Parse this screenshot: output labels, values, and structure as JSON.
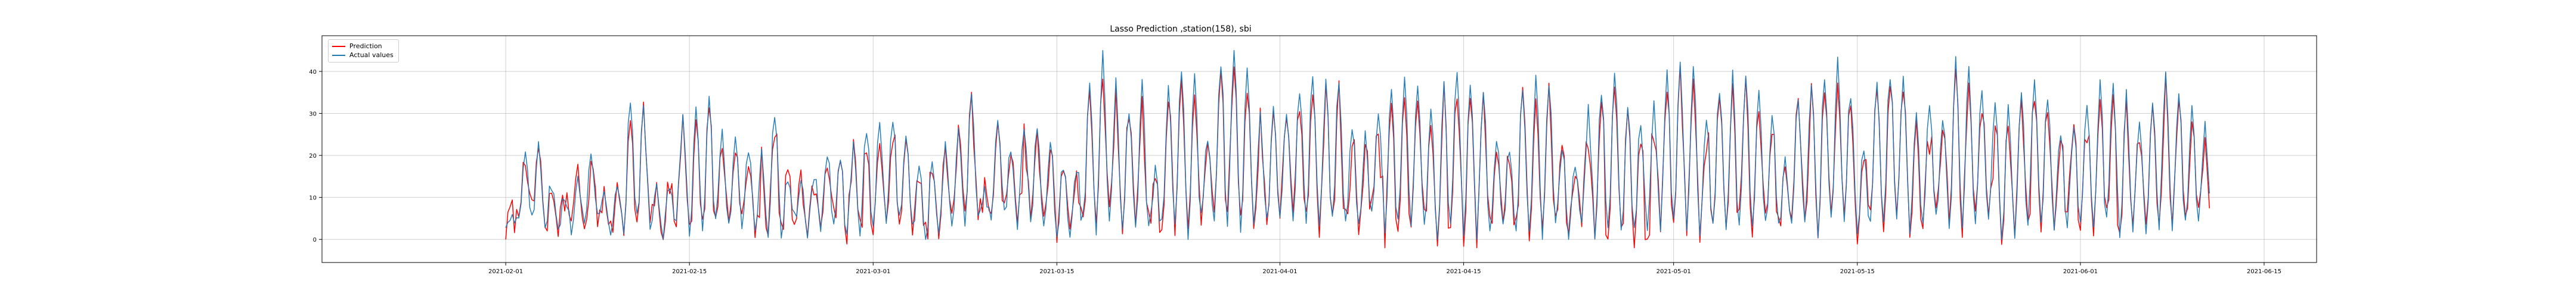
{
  "colors": {
    "prediction": "#ff0000",
    "actual": "#1f77b4",
    "grid": "#b0b0b0",
    "axes": "#000000"
  },
  "chart_data": {
    "type": "line",
    "title": "Lasso Prediction ,station(158), sbi",
    "xlabel": "",
    "ylabel": "",
    "grid": true,
    "legend_position": "top-left",
    "x_range": [
      "2021-01-18",
      "2021-06-19"
    ],
    "y_range": [
      -5.5,
      48.5
    ],
    "x_ticks": [
      "2021-02-01",
      "2021-02-15",
      "2021-03-01",
      "2021-03-15",
      "2021-04-01",
      "2021-04-15",
      "2021-05-01",
      "2021-05-15",
      "2021-06-01",
      "2021-06-15"
    ],
    "y_ticks": [
      0,
      10,
      20,
      30,
      40
    ],
    "x_start": "2021-02-01",
    "x_end": "2021-06-11",
    "samples_per_day": 6,
    "series": [
      {
        "name": "Prediction",
        "color": "#ff0000"
      },
      {
        "name": "Actual values",
        "color": "#1f77b4"
      }
    ],
    "daily_peak_approx": [
      6,
      20,
      24,
      14,
      10,
      14,
      22,
      11,
      12,
      33,
      31,
      12,
      14,
      30,
      32,
      34,
      26,
      22,
      21,
      20,
      30,
      16,
      12,
      16,
      22,
      18,
      21,
      26,
      28,
      30,
      24,
      18,
      16,
      21,
      28,
      36,
      12,
      30,
      22,
      28,
      26,
      24,
      18,
      18,
      36,
      44,
      36,
      32,
      38,
      16,
      36,
      40,
      38,
      24,
      42,
      44,
      42,
      30,
      32,
      30,
      36,
      40,
      36,
      38,
      26,
      24,
      30,
      36,
      40,
      36,
      30,
      36,
      40,
      38,
      36,
      24,
      22,
      36,
      38,
      36,
      22,
      18,
      30,
      36,
      40,
      32,
      28,
      32,
      38,
      42,
      40,
      28,
      36,
      38,
      40,
      36,
      30,
      20,
      34,
      38,
      40,
      42,
      36,
      22,
      38,
      40,
      38,
      32,
      34,
      30,
      42,
      40,
      36,
      34,
      30,
      36,
      38,
      34,
      26,
      28,
      34,
      36,
      36,
      34,
      30,
      32,
      40,
      34,
      32,
      28,
      22,
      30,
      30,
      28,
      34,
      34,
      28,
      32,
      28
    ]
  }
}
